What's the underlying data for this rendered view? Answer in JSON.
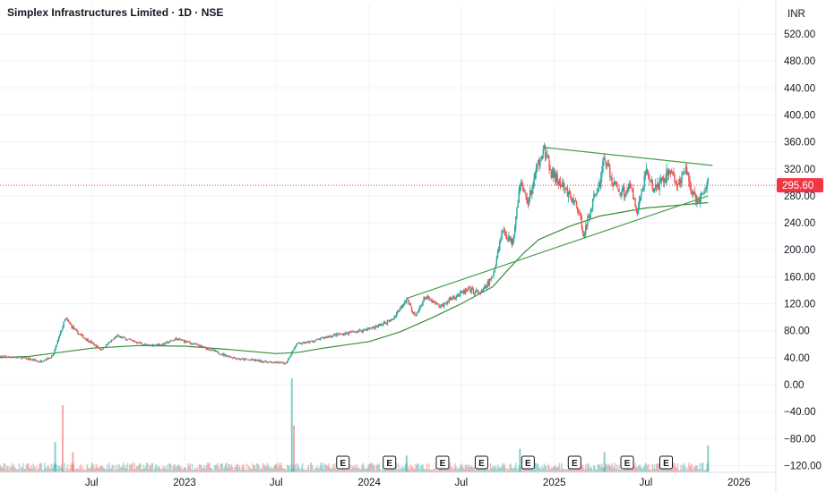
{
  "header": {
    "title": "Simplex Infrastructures Limited · 1D · NSE",
    "currency": "INR"
  },
  "colors": {
    "up": "#26a69a",
    "down": "#ef5350",
    "trendline": "#43a047",
    "moving_average": "#388e3c",
    "price_line": "#f23645",
    "grid": "#f0f3fa"
  },
  "earnings_marker": "E",
  "chart_data": {
    "type": "candlestick",
    "title": "Simplex Infrastructures Limited · 1D · NSE",
    "currency": "INR",
    "ylim": [
      -130,
      548
    ],
    "y_ticks": [
      "520.00",
      "480.00",
      "440.00",
      "400.00",
      "360.00",
      "320.00",
      "280.00",
      "240.00",
      "200.00",
      "160.00",
      "120.00",
      "80.00",
      "40.00",
      "0.00",
      "−40.00",
      "−80.00",
      "−120.00"
    ],
    "y_tick_values": [
      520,
      480,
      440,
      400,
      360,
      320,
      280,
      240,
      200,
      160,
      120,
      80,
      40,
      0,
      -40,
      -80,
      -120
    ],
    "x_range": [
      "2022-01-01",
      "2026-03-15"
    ],
    "x_ticks": [
      {
        "label": "Jul",
        "date": "2022-07-01"
      },
      {
        "label": "2023",
        "date": "2023-01-01"
      },
      {
        "label": "Jul",
        "date": "2023-07-01"
      },
      {
        "label": "2024",
        "date": "2024-01-01"
      },
      {
        "label": "Jul",
        "date": "2024-07-01"
      },
      {
        "label": "2025",
        "date": "2025-01-01"
      },
      {
        "label": "Jul",
        "date": "2025-07-01"
      },
      {
        "label": "2026",
        "date": "2026-01-01"
      }
    ],
    "last_price": "295.60",
    "last_price_value": 295.6,
    "price_path": [
      [
        "2022-01-01",
        42
      ],
      [
        "2022-02-15",
        40
      ],
      [
        "2022-03-20",
        34
      ],
      [
        "2022-04-15",
        42
      ],
      [
        "2022-05-10",
        98
      ],
      [
        "2022-06-01",
        78
      ],
      [
        "2022-07-01",
        62
      ],
      [
        "2022-07-20",
        52
      ],
      [
        "2022-08-20",
        72
      ],
      [
        "2022-09-20",
        65
      ],
      [
        "2022-10-20",
        58
      ],
      [
        "2022-11-20",
        60
      ],
      [
        "2022-12-15",
        68
      ],
      [
        "2023-01-20",
        60
      ],
      [
        "2023-02-20",
        52
      ],
      [
        "2023-03-20",
        44
      ],
      [
        "2023-04-20",
        38
      ],
      [
        "2023-05-20",
        36
      ],
      [
        "2023-06-20",
        33
      ],
      [
        "2023-07-20",
        32
      ],
      [
        "2023-08-10",
        60
      ],
      [
        "2023-09-10",
        64
      ],
      [
        "2023-10-15",
        72
      ],
      [
        "2023-11-15",
        76
      ],
      [
        "2023-12-15",
        80
      ],
      [
        "2024-01-15",
        86
      ],
      [
        "2024-02-15",
        96
      ],
      [
        "2024-03-15",
        128
      ],
      [
        "2024-04-01",
        100
      ],
      [
        "2024-04-20",
        130
      ],
      [
        "2024-05-20",
        115
      ],
      [
        "2024-06-15",
        130
      ],
      [
        "2024-07-15",
        140
      ],
      [
        "2024-08-10",
        136
      ],
      [
        "2024-09-01",
        160
      ],
      [
        "2024-09-20",
        230
      ],
      [
        "2024-10-10",
        210
      ],
      [
        "2024-10-25",
        300
      ],
      [
        "2024-11-10",
        270
      ],
      [
        "2024-12-01",
        330
      ],
      [
        "2024-12-10",
        352
      ],
      [
        "2024-12-25",
        315
      ],
      [
        "2025-01-10",
        300
      ],
      [
        "2025-01-25",
        285
      ],
      [
        "2025-02-15",
        265
      ],
      [
        "2025-03-01",
        222
      ],
      [
        "2025-03-15",
        265
      ],
      [
        "2025-04-01",
        300
      ],
      [
        "2025-04-10",
        340
      ],
      [
        "2025-04-25",
        300
      ],
      [
        "2025-05-15",
        285
      ],
      [
        "2025-06-01",
        292
      ],
      [
        "2025-06-15",
        258
      ],
      [
        "2025-07-01",
        318
      ],
      [
        "2025-07-15",
        290
      ],
      [
        "2025-08-01",
        300
      ],
      [
        "2025-08-20",
        320
      ],
      [
        "2025-09-01",
        292
      ],
      [
        "2025-09-20",
        318
      ],
      [
        "2025-10-01",
        280
      ],
      [
        "2025-10-15",
        272
      ],
      [
        "2025-10-25",
        285
      ],
      [
        "2025-11-01",
        305
      ]
    ],
    "moving_average": [
      [
        "2022-01-01",
        40
      ],
      [
        "2022-03-01",
        42
      ],
      [
        "2022-05-01",
        48
      ],
      [
        "2022-07-01",
        54
      ],
      [
        "2022-10-01",
        58
      ],
      [
        "2023-01-01",
        57
      ],
      [
        "2023-04-01",
        52
      ],
      [
        "2023-07-01",
        46
      ],
      [
        "2023-08-15",
        48
      ],
      [
        "2023-10-01",
        54
      ],
      [
        "2024-01-01",
        64
      ],
      [
        "2024-03-01",
        78
      ],
      [
        "2024-05-01",
        98
      ],
      [
        "2024-07-01",
        120
      ],
      [
        "2024-09-01",
        145
      ],
      [
        "2024-10-01",
        170
      ],
      [
        "2024-11-01",
        195
      ],
      [
        "2024-12-01",
        215
      ],
      [
        "2025-02-01",
        235
      ],
      [
        "2025-04-01",
        250
      ],
      [
        "2025-07-01",
        262
      ],
      [
        "2025-10-01",
        268
      ],
      [
        "2025-11-01",
        270
      ]
    ],
    "trendlines": [
      {
        "start": [
          "2024-03-15",
          128
        ],
        "end": [
          "2025-11-01",
          280
        ]
      },
      {
        "start": [
          "2024-12-10",
          352
        ],
        "end": [
          "2025-11-10",
          325
        ]
      }
    ],
    "volume_spikes": [
      {
        "date": "2022-04-20",
        "value": 0.45,
        "dir": "up"
      },
      {
        "date": "2022-05-05",
        "value": 1.0,
        "dir": "down"
      },
      {
        "date": "2022-05-25",
        "value": 0.3,
        "dir": "down"
      },
      {
        "date": "2023-08-01",
        "value": 1.4,
        "dir": "up"
      },
      {
        "date": "2023-08-05",
        "value": 0.7,
        "dir": "down"
      },
      {
        "date": "2024-03-15",
        "value": 0.25,
        "dir": "up"
      },
      {
        "date": "2024-10-25",
        "value": 0.35,
        "dir": "up"
      },
      {
        "date": "2025-04-10",
        "value": 0.3,
        "dir": "up"
      },
      {
        "date": "2025-11-01",
        "value": 0.4,
        "dir": "up"
      }
    ],
    "earnings_dates": [
      "2023-11-10",
      "2024-02-10",
      "2024-05-25",
      "2024-08-10",
      "2024-11-10",
      "2025-02-10",
      "2025-05-25",
      "2025-08-10"
    ]
  }
}
